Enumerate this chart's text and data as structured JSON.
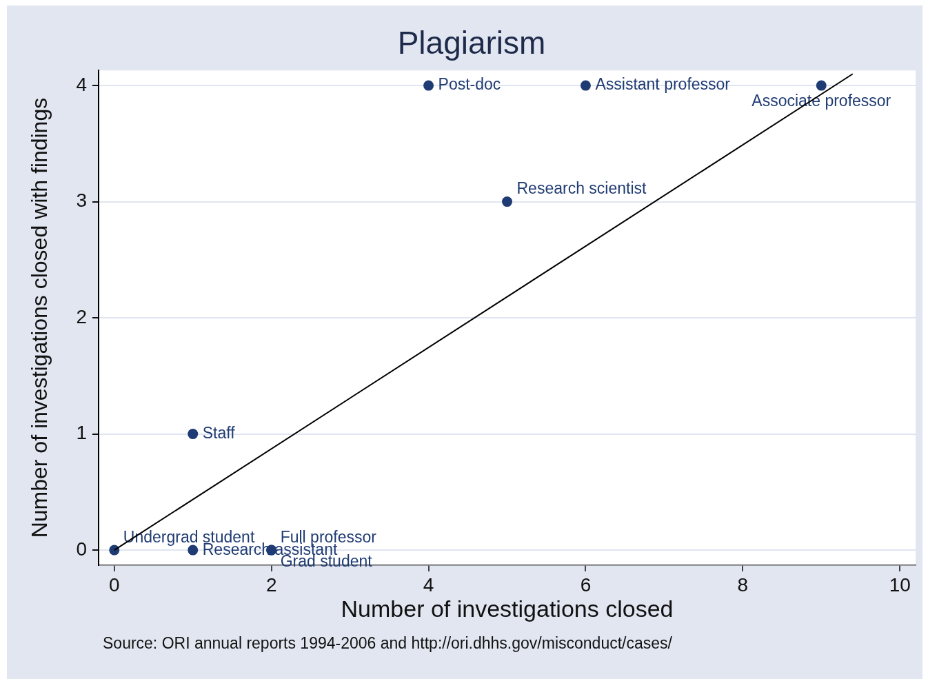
{
  "chart_data": {
    "type": "scatter",
    "title": "Plagiarism",
    "xlabel": "Number of investigations closed",
    "ylabel": "Number of investigations closed with findings",
    "series": [
      {
        "type": "scatter",
        "color": "#1f3b73",
        "x": [
          0,
          1,
          2,
          2,
          1,
          4,
          5,
          6,
          9
        ],
        "values": [
          0,
          0,
          0,
          0,
          1,
          4,
          3,
          4,
          4
        ]
      },
      {
        "type": "line",
        "color": "#000000",
        "x": [
          0,
          9.4
        ],
        "values": [
          0,
          4.1
        ],
        "marker": "none"
      }
    ],
    "xlim": [
      -0.2,
      10.2
    ],
    "xticks": [
      0,
      2,
      4,
      6,
      8,
      10
    ],
    "ylim": [
      -0.13,
      4.13
    ],
    "yticks": [
      0,
      1,
      2,
      3,
      4
    ],
    "grid": "y",
    "legend": false,
    "marker": "circle",
    "line_style": "solid",
    "annotations": [
      {
        "text": "Undergrad student",
        "x": 0,
        "y": 0
      },
      {
        "text": "Research assistant",
        "x": 1,
        "y": 0
      },
      {
        "text": "Full professor",
        "x": 2,
        "y": 0
      },
      {
        "text": "Grad student",
        "x": 2,
        "y": 0
      },
      {
        "text": "Staff",
        "x": 1,
        "y": 1
      },
      {
        "text": "Post-doc",
        "x": 4,
        "y": 4
      },
      {
        "text": "Research scientist",
        "x": 5,
        "y": 3
      },
      {
        "text": "Assistant professor",
        "x": 6,
        "y": 4
      },
      {
        "text": "Associate professor",
        "x": 9,
        "y": 4
      },
      "Source: ORI annual reports 1994-2006 and http://ori.dhhs.gov/misconduct/cases/"
    ]
  }
}
